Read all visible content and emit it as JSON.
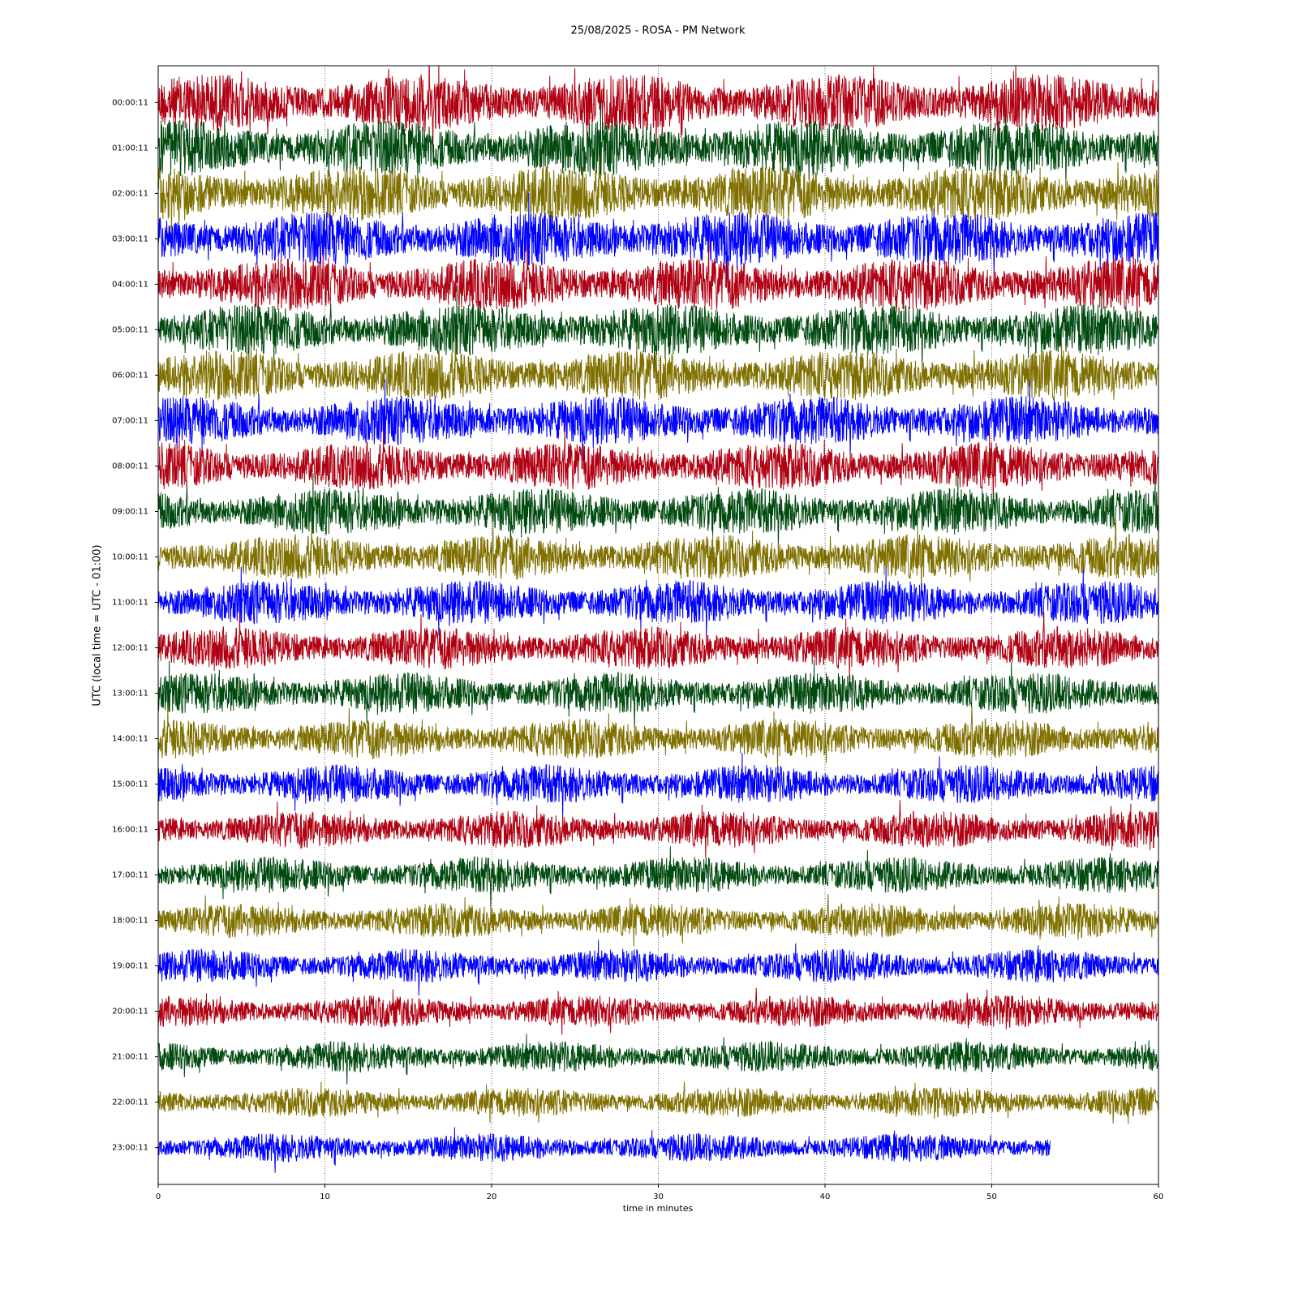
{
  "chart_data": {
    "type": "helicorder",
    "title": "25/08/2025 - ROSA - PM Network",
    "x_label": "time in minutes",
    "y_label": "UTC (local time = UTC - 01:00)",
    "xlim": [
      0,
      60
    ],
    "xticks": [
      0,
      10,
      20,
      30,
      40,
      50,
      60
    ],
    "grid": true,
    "categories": [
      "00:00:11",
      "01:00:11",
      "02:00:11",
      "03:00:11",
      "04:00:11",
      "05:00:11",
      "06:00:11",
      "07:00:11",
      "08:00:11",
      "09:00:11",
      "10:00:11",
      "11:00:11",
      "12:00:11",
      "13:00:11",
      "14:00:11",
      "15:00:11",
      "16:00:11",
      "17:00:11",
      "18:00:11",
      "19:00:11",
      "20:00:11",
      "21:00:11",
      "22:00:11",
      "23:00:11"
    ],
    "colors": [
      "#b00012",
      "#004a0f",
      "#807000",
      "#0000ff"
    ],
    "end": [
      60,
      60,
      60,
      60,
      60,
      60,
      60,
      60,
      60,
      60,
      60,
      60,
      60,
      60,
      60,
      60,
      60,
      60,
      60,
      60,
      60,
      60,
      60,
      53.5
    ]
  }
}
